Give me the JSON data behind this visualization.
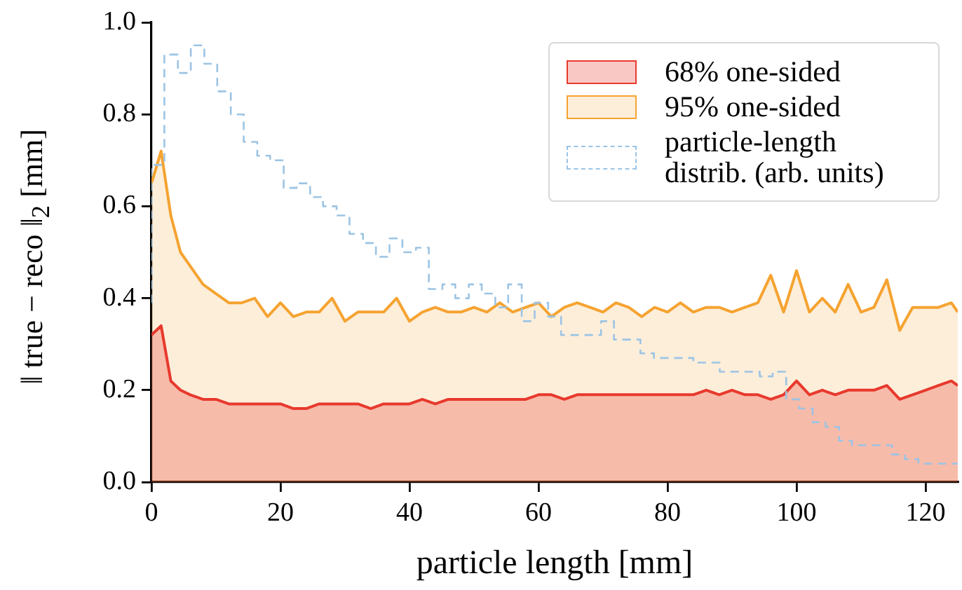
{
  "chart_data": {
    "type": "area",
    "xlabel": "particle length [mm]",
    "ylabel": "‖ true − reco ‖$_{2}$ [mm]",
    "x": [
      0,
      1.5,
      3,
      4.5,
      6,
      8,
      10,
      12,
      14,
      16,
      18,
      20,
      22,
      24,
      26,
      28,
      30,
      32,
      34,
      36,
      38,
      40,
      42,
      44,
      46,
      48,
      50,
      52,
      54,
      56,
      58,
      60,
      62,
      64,
      66,
      68,
      70,
      72,
      74,
      76,
      78,
      80,
      82,
      84,
      86,
      88,
      90,
      92,
      94,
      96,
      98,
      100,
      102,
      104,
      106,
      108,
      110,
      112,
      114,
      116,
      118,
      120,
      122,
      124,
      125
    ],
    "series": [
      {
        "name": "68% one-sided",
        "color": "#e8392d",
        "values": [
          0.32,
          0.34,
          0.22,
          0.2,
          0.19,
          0.18,
          0.18,
          0.17,
          0.17,
          0.17,
          0.17,
          0.17,
          0.16,
          0.16,
          0.17,
          0.17,
          0.17,
          0.17,
          0.16,
          0.17,
          0.17,
          0.17,
          0.18,
          0.17,
          0.18,
          0.18,
          0.18,
          0.18,
          0.18,
          0.18,
          0.18,
          0.19,
          0.19,
          0.18,
          0.19,
          0.19,
          0.19,
          0.19,
          0.19,
          0.19,
          0.19,
          0.19,
          0.19,
          0.19,
          0.2,
          0.19,
          0.2,
          0.19,
          0.19,
          0.18,
          0.19,
          0.22,
          0.19,
          0.2,
          0.19,
          0.2,
          0.2,
          0.2,
          0.21,
          0.18,
          0.19,
          0.2,
          0.21,
          0.22,
          0.21
        ]
      },
      {
        "name": "95% one-sided",
        "color": "#f5a331",
        "values": [
          0.65,
          0.72,
          0.58,
          0.5,
          0.47,
          0.43,
          0.41,
          0.39,
          0.39,
          0.4,
          0.36,
          0.39,
          0.36,
          0.37,
          0.37,
          0.4,
          0.35,
          0.37,
          0.37,
          0.37,
          0.4,
          0.35,
          0.37,
          0.38,
          0.37,
          0.37,
          0.38,
          0.37,
          0.39,
          0.37,
          0.38,
          0.39,
          0.36,
          0.38,
          0.39,
          0.38,
          0.37,
          0.39,
          0.38,
          0.36,
          0.38,
          0.37,
          0.39,
          0.37,
          0.38,
          0.38,
          0.37,
          0.38,
          0.39,
          0.45,
          0.37,
          0.46,
          0.37,
          0.4,
          0.37,
          0.43,
          0.37,
          0.38,
          0.44,
          0.33,
          0.38,
          0.38,
          0.38,
          0.39,
          0.37
        ]
      },
      {
        "name": "particle-length distrib. (arb. units)",
        "type": "step",
        "color": "#9cc4e4",
        "line_style": "dashed",
        "x": [
          0,
          2,
          4.1,
          6.1,
          8.2,
          10.2,
          12.3,
          14.3,
          16.4,
          18.4,
          20.5,
          22.5,
          24.6,
          26.6,
          28.7,
          30.7,
          32.8,
          34.8,
          36.9,
          38.9,
          41,
          43,
          45.1,
          47.1,
          49.2,
          51.2,
          53.3,
          55.3,
          57.4,
          59.4,
          61.5,
          63.5,
          65.6,
          67.6,
          69.7,
          71.7,
          73.8,
          75.8,
          77.9,
          79.9,
          82,
          84,
          86.1,
          88.1,
          90.2,
          92.2,
          94.3,
          96.3,
          98.4,
          100.4,
          102.5,
          104.5,
          106.6,
          108.6,
          110.7,
          112.7,
          114.8,
          116.8,
          118.9,
          120.9,
          123,
          125
        ],
        "values": [
          0.39,
          0.69,
          0.93,
          0.89,
          0.95,
          0.91,
          0.85,
          0.8,
          0.74,
          0.71,
          0.7,
          0.64,
          0.65,
          0.62,
          0.6,
          0.58,
          0.54,
          0.52,
          0.49,
          0.53,
          0.5,
          0.51,
          0.42,
          0.43,
          0.4,
          0.43,
          0.41,
          0.38,
          0.43,
          0.35,
          0.39,
          0.36,
          0.32,
          0.32,
          0.32,
          0.35,
          0.31,
          0.31,
          0.28,
          0.27,
          0.27,
          0.27,
          0.26,
          0.26,
          0.24,
          0.24,
          0.24,
          0.23,
          0.24,
          0.18,
          0.16,
          0.13,
          0.12,
          0.09,
          0.08,
          0.08,
          0.08,
          0.06,
          0.05,
          0.04,
          0.04,
          0.04
        ]
      }
    ],
    "xlim": [
      0,
      125
    ],
    "xticks": [
      0,
      20,
      40,
      60,
      80,
      100,
      120
    ],
    "ylim": [
      0,
      1
    ],
    "yticks": [
      {
        "value": 0,
        "label": "0.0"
      },
      0.2,
      0.4,
      0.6,
      0.8,
      {
        "value": 1,
        "label": "1.0"
      }
    ],
    "grid": false,
    "legend": "top right"
  }
}
